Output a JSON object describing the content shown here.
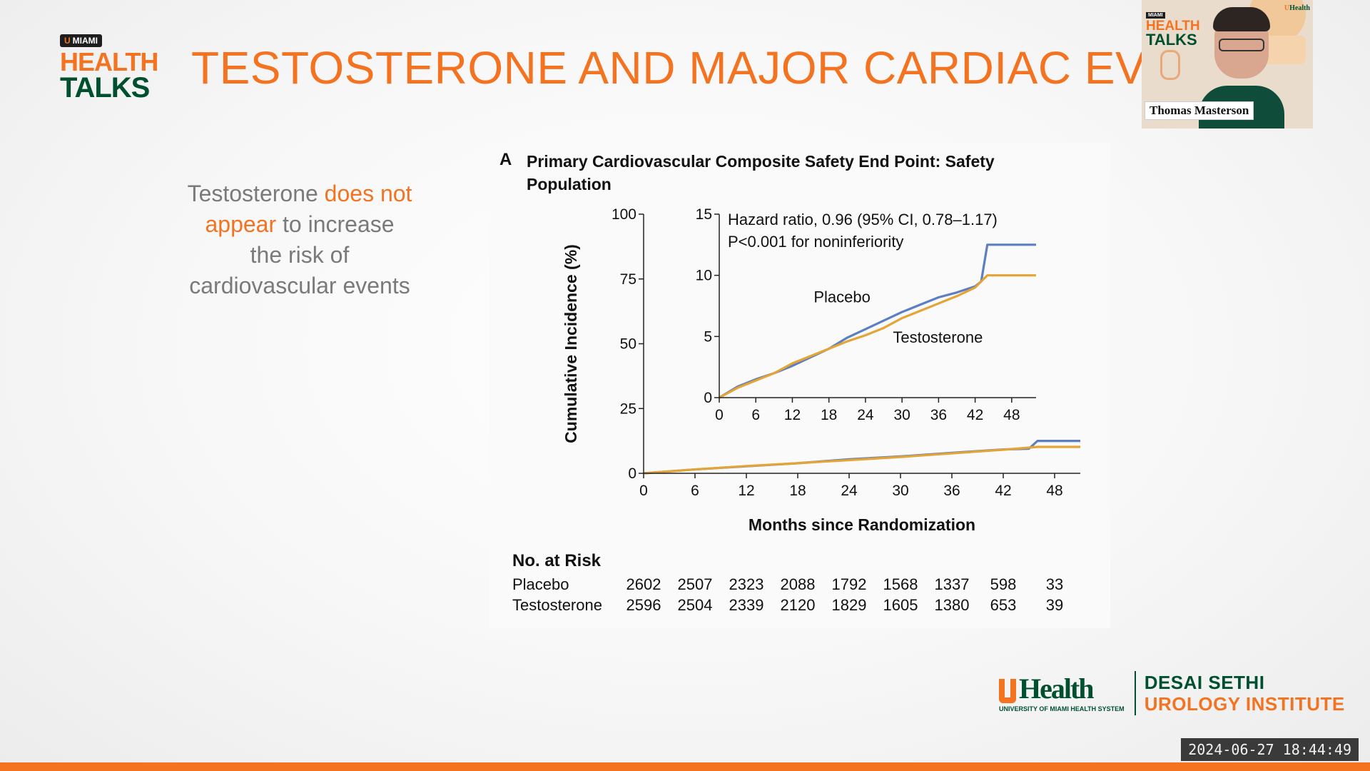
{
  "brand": {
    "miami_tag": "MIAMI",
    "health": "HEALTH",
    "talks": "TALKS"
  },
  "slide": {
    "title": "TESTOSTERONE AND MAJOR CARDIAC EVENTS",
    "bullet": {
      "pre": "Testosterone ",
      "highlight": "does not appear",
      "post": " to increase the risk of cardiovascular events"
    }
  },
  "figure": {
    "panel_letter": "A",
    "title": "Primary Cardiovascular Composite Safety End Point: Safety Population",
    "colors": {
      "placebo": "#5b7fc2",
      "testosterone": "#e5a436",
      "axis": "#222222"
    }
  },
  "chart_data": [
    {
      "type": "line",
      "xlabel": "Months since Randomization",
      "ylabel": "Cumulative Incidence (%)",
      "xlim": [
        0,
        51
      ],
      "ylim": [
        0,
        100
      ],
      "x_ticks": [
        0,
        6,
        12,
        18,
        24,
        30,
        36,
        42,
        48
      ],
      "y_ticks": [
        0,
        25,
        50,
        75,
        100
      ],
      "series": [
        {
          "name": "Placebo",
          "x": [
            0,
            6,
            12,
            18,
            24,
            30,
            36,
            42,
            45,
            46,
            51
          ],
          "y": [
            0,
            1.5,
            2.7,
            3.9,
            5.4,
            6.5,
            7.9,
            9.2,
            9.5,
            12.5,
            12.5
          ]
        },
        {
          "name": "Testosterone",
          "x": [
            0,
            6,
            12,
            18,
            24,
            30,
            36,
            42,
            46,
            51
          ],
          "y": [
            0,
            1.5,
            2.8,
            3.9,
            5.1,
            6.3,
            7.7,
            9.1,
            10.2,
            10.2
          ]
        }
      ]
    },
    {
      "type": "line",
      "xlim": [
        0,
        52
      ],
      "ylim": [
        0,
        15
      ],
      "x_ticks": [
        0,
        6,
        12,
        18,
        24,
        30,
        36,
        42,
        48
      ],
      "y_ticks": [
        0,
        5,
        10,
        15
      ],
      "annotations": [
        "Hazard ratio, 0.96 (95% CI, 0.78–1.17)",
        "P<0.001 for noninferiority"
      ],
      "series": [
        {
          "name": "Placebo",
          "x": [
            0,
            3,
            6,
            9,
            12,
            15,
            18,
            21,
            24,
            27,
            30,
            33,
            36,
            39,
            42,
            43,
            44,
            47,
            52
          ],
          "y": [
            0,
            0.9,
            1.5,
            2.0,
            2.6,
            3.3,
            4.0,
            4.9,
            5.6,
            6.3,
            7.0,
            7.6,
            8.2,
            8.6,
            9.1,
            9.5,
            12.5,
            12.5,
            12.5
          ]
        },
        {
          "name": "Testosterone",
          "x": [
            0,
            3,
            6,
            9,
            12,
            15,
            18,
            21,
            24,
            27,
            30,
            33,
            36,
            39,
            42,
            44,
            47,
            52
          ],
          "y": [
            0,
            0.8,
            1.4,
            2.0,
            2.8,
            3.4,
            4.0,
            4.6,
            5.1,
            5.7,
            6.5,
            7.1,
            7.7,
            8.3,
            9.0,
            10.0,
            10.0,
            10.0
          ]
        }
      ]
    }
  ],
  "risk_table": {
    "heading": "No. at Risk",
    "months": [
      0,
      6,
      12,
      18,
      24,
      30,
      36,
      42,
      48
    ],
    "rows": [
      {
        "label": "Placebo",
        "values": [
          "2602",
          "2507",
          "2323",
          "2088",
          "1792",
          "1568",
          "1337",
          "598",
          "33"
        ]
      },
      {
        "label": "Testosterone",
        "values": [
          "2596",
          "2504",
          "2339",
          "2120",
          "1829",
          "1605",
          "1380",
          "653",
          "39"
        ]
      }
    ]
  },
  "footer": {
    "uhealth": "Health",
    "uhealth_sub": "UNIVERSITY OF MIAMI HEALTH SYSTEM",
    "institute_line1": "DESAI SETHI",
    "institute_line2": "UROLOGY INSTITUTE"
  },
  "speaker": {
    "name": "Thomas Masterson",
    "mini_tag": "MIAMI",
    "mini_health": "HEALTH",
    "mini_talks": "TALKS",
    "corner_logo": "Health"
  },
  "timestamp": "2024-06-27  18:44:49"
}
